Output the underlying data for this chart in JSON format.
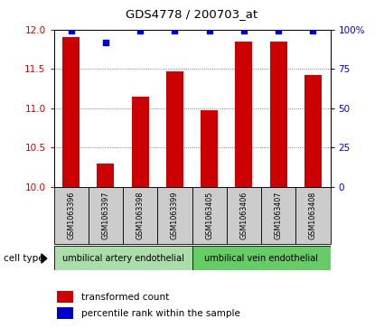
{
  "title": "GDS4778 / 200703_at",
  "samples": [
    "GSM1063396",
    "GSM1063397",
    "GSM1063398",
    "GSM1063399",
    "GSM1063405",
    "GSM1063406",
    "GSM1063407",
    "GSM1063408"
  ],
  "transformed_counts": [
    11.9,
    10.3,
    11.15,
    11.47,
    10.97,
    11.85,
    11.85,
    11.42
  ],
  "percentile_ranks": [
    99,
    92,
    99,
    99,
    99,
    99,
    99,
    99
  ],
  "ylim_left": [
    10,
    12
  ],
  "ylim_right": [
    0,
    100
  ],
  "yticks_left": [
    10,
    10.5,
    11,
    11.5,
    12
  ],
  "yticks_right": [
    0,
    25,
    50,
    75,
    100
  ],
  "bar_color": "#cc0000",
  "dot_color": "#0000cc",
  "bar_width": 0.5,
  "cell_type_groups": [
    {
      "label": "umbilical artery endothelial",
      "start": 0,
      "end": 4,
      "color": "#aaddaa"
    },
    {
      "label": "umbilical vein endothelial",
      "start": 4,
      "end": 8,
      "color": "#66cc66"
    }
  ],
  "legend_bar_label": "transformed count",
  "legend_dot_label": "percentile rank within the sample",
  "tick_label_color_left": "#cc0000",
  "tick_label_color_right": "#0000cc",
  "sample_box_color": "#cccccc",
  "grid_linestyle": ":",
  "grid_color": "#555555"
}
